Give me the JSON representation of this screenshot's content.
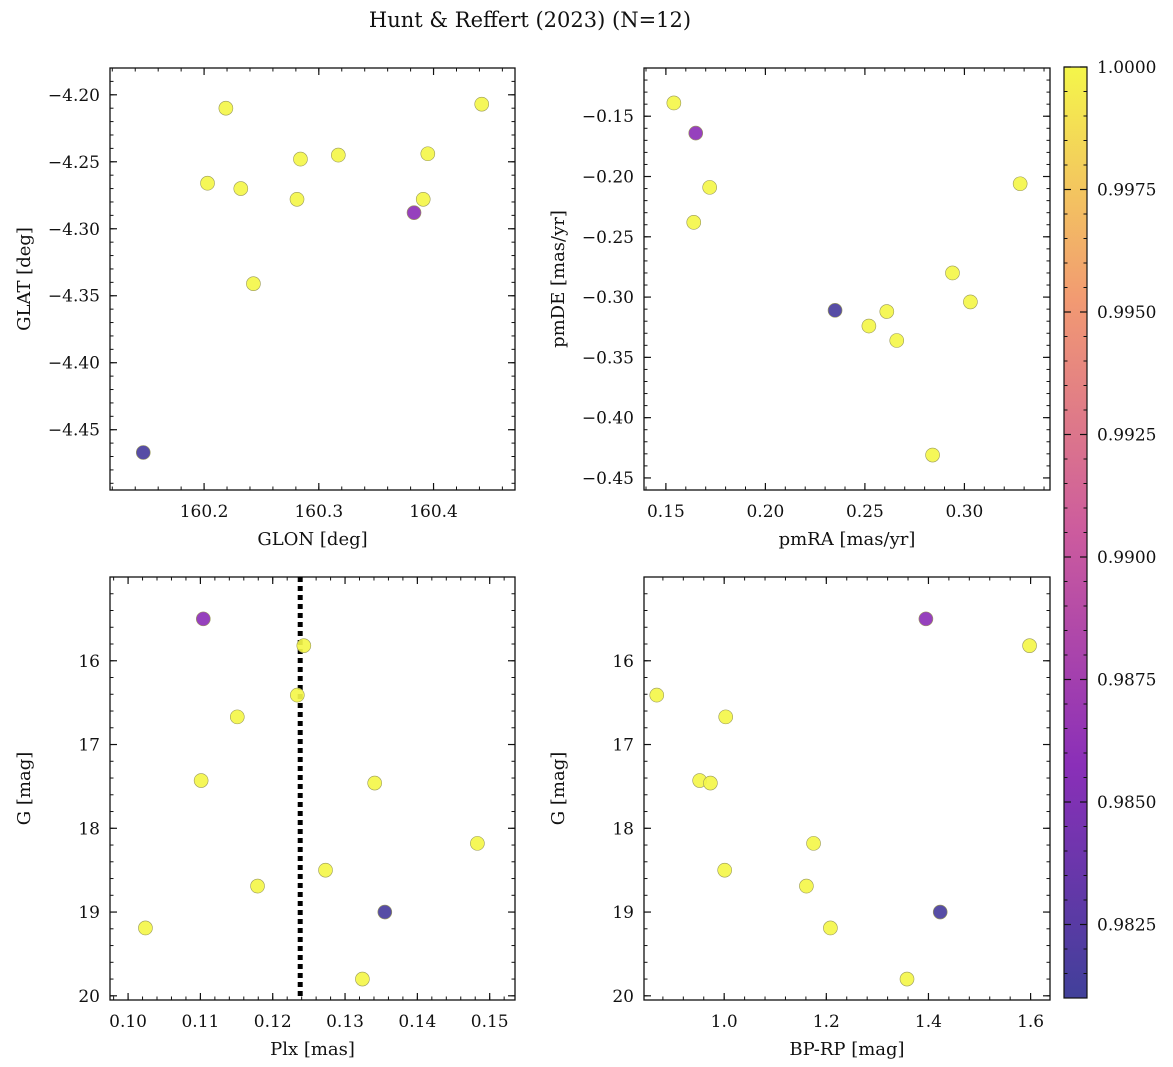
{
  "figure": {
    "title": "Hunt & Reffert (2023) (N=12)"
  },
  "colorbar": {
    "min": 0.981,
    "max": 1.0,
    "ticks": [
      0.9825,
      0.985,
      0.9875,
      0.99,
      0.9925,
      0.995,
      0.9975,
      1.0
    ],
    "tick_labels": [
      "0.9825",
      "0.9850",
      "0.9875",
      "0.9900",
      "0.9925",
      "0.9950",
      "0.9975",
      "1.0000"
    ],
    "colormap": "plasma"
  },
  "chart_data": [
    {
      "type": "scatter",
      "xlabel": "GLON [deg]",
      "ylabel": "GLAT [deg]",
      "xlim": [
        160.118,
        160.471
      ],
      "ylim": [
        -4.495,
        -4.18
      ],
      "y_inverted": false,
      "xticks": [
        160.2,
        160.3,
        160.4
      ],
      "xtick_labels": [
        "160.2",
        "160.3",
        "160.4"
      ],
      "yticks": [
        -4.2,
        -4.25,
        -4.3,
        -4.35,
        -4.4,
        -4.45
      ],
      "ytick_labels": [
        "−4.20",
        "−4.25",
        "−4.30",
        "−4.35",
        "−4.40",
        "−4.45"
      ],
      "points": [
        {
          "x": 160.219,
          "y": -4.21,
          "c": 1.0
        },
        {
          "x": 160.203,
          "y": -4.266,
          "c": 1.0
        },
        {
          "x": 160.232,
          "y": -4.27,
          "c": 1.0
        },
        {
          "x": 160.284,
          "y": -4.248,
          "c": 1.0
        },
        {
          "x": 160.281,
          "y": -4.278,
          "c": 1.0
        },
        {
          "x": 160.317,
          "y": -4.245,
          "c": 1.0
        },
        {
          "x": 160.395,
          "y": -4.244,
          "c": 1.0
        },
        {
          "x": 160.391,
          "y": -4.278,
          "c": 1.0
        },
        {
          "x": 160.442,
          "y": -4.207,
          "c": 1.0
        },
        {
          "x": 160.383,
          "y": -4.288,
          "c": 0.986
        },
        {
          "x": 160.243,
          "y": -4.341,
          "c": 1.0
        },
        {
          "x": 160.147,
          "y": -4.467,
          "c": 0.9815
        }
      ]
    },
    {
      "type": "scatter",
      "xlabel": "pmRA [mas/yr]",
      "ylabel": "pmDE [mas/yr]",
      "xlim": [
        0.139,
        0.343
      ],
      "ylim": [
        -0.46,
        -0.11
      ],
      "y_inverted": false,
      "xticks": [
        0.15,
        0.2,
        0.25,
        0.3
      ],
      "xtick_labels": [
        "0.15",
        "0.20",
        "0.25",
        "0.30"
      ],
      "yticks": [
        -0.15,
        -0.2,
        -0.25,
        -0.3,
        -0.35,
        -0.4,
        -0.45
      ],
      "ytick_labels": [
        "−0.15",
        "−0.20",
        "−0.25",
        "−0.30",
        "−0.35",
        "−0.40",
        "−0.45"
      ],
      "points": [
        {
          "x": 0.154,
          "y": -0.139,
          "c": 1.0
        },
        {
          "x": 0.165,
          "y": -0.164,
          "c": 0.986
        },
        {
          "x": 0.172,
          "y": -0.209,
          "c": 1.0
        },
        {
          "x": 0.164,
          "y": -0.238,
          "c": 1.0
        },
        {
          "x": 0.328,
          "y": -0.206,
          "c": 1.0
        },
        {
          "x": 0.294,
          "y": -0.28,
          "c": 1.0
        },
        {
          "x": 0.303,
          "y": -0.304,
          "c": 1.0
        },
        {
          "x": 0.235,
          "y": -0.311,
          "c": 0.9815
        },
        {
          "x": 0.261,
          "y": -0.312,
          "c": 1.0
        },
        {
          "x": 0.252,
          "y": -0.324,
          "c": 1.0
        },
        {
          "x": 0.266,
          "y": -0.336,
          "c": 1.0
        },
        {
          "x": 0.284,
          "y": -0.431,
          "c": 1.0
        }
      ]
    },
    {
      "type": "scatter",
      "xlabel": "Plx [mas]",
      "ylabel": "G [mag]",
      "xlim": [
        0.0975,
        0.1535
      ],
      "ylim": [
        20.05,
        15.0
      ],
      "y_inverted": true,
      "xticks": [
        0.1,
        0.11,
        0.12,
        0.13,
        0.14,
        0.15
      ],
      "xtick_labels": [
        "0.10",
        "0.11",
        "0.12",
        "0.13",
        "0.14",
        "0.15"
      ],
      "yticks": [
        16,
        17,
        18,
        19,
        20
      ],
      "ytick_labels": [
        "16",
        "17",
        "18",
        "19",
        "20"
      ],
      "vline": {
        "x": 0.1238,
        "style": "dotted"
      },
      "points": [
        {
          "x": 0.1104,
          "y": 15.5,
          "c": 0.986
        },
        {
          "x": 0.1243,
          "y": 15.82,
          "c": 1.0
        },
        {
          "x": 0.1234,
          "y": 16.41,
          "c": 1.0
        },
        {
          "x": 0.1151,
          "y": 16.67,
          "c": 1.0
        },
        {
          "x": 0.1101,
          "y": 17.43,
          "c": 1.0
        },
        {
          "x": 0.1341,
          "y": 17.46,
          "c": 1.0
        },
        {
          "x": 0.1483,
          "y": 18.18,
          "c": 1.0
        },
        {
          "x": 0.1273,
          "y": 18.5,
          "c": 1.0
        },
        {
          "x": 0.1179,
          "y": 18.69,
          "c": 1.0
        },
        {
          "x": 0.1355,
          "y": 19.0,
          "c": 0.9815
        },
        {
          "x": 0.1024,
          "y": 19.19,
          "c": 1.0
        },
        {
          "x": 0.1324,
          "y": 19.8,
          "c": 1.0
        }
      ]
    },
    {
      "type": "scatter",
      "xlabel": "BP-RP [mag]",
      "ylabel": "G [mag]",
      "xlim": [
        0.843,
        1.638
      ],
      "ylim": [
        20.05,
        15.0
      ],
      "y_inverted": true,
      "xticks": [
        1.0,
        1.2,
        1.4,
        1.6
      ],
      "xtick_labels": [
        "1.0",
        "1.2",
        "1.4",
        "1.6"
      ],
      "yticks": [
        16,
        17,
        18,
        19,
        20
      ],
      "ytick_labels": [
        "16",
        "17",
        "18",
        "19",
        "20"
      ],
      "points": [
        {
          "x": 1.395,
          "y": 15.5,
          "c": 0.986
        },
        {
          "x": 1.598,
          "y": 15.82,
          "c": 1.0
        },
        {
          "x": 0.868,
          "y": 16.41,
          "c": 1.0
        },
        {
          "x": 1.003,
          "y": 16.67,
          "c": 1.0
        },
        {
          "x": 0.952,
          "y": 17.43,
          "c": 1.0
        },
        {
          "x": 0.973,
          "y": 17.46,
          "c": 1.0
        },
        {
          "x": 1.175,
          "y": 18.18,
          "c": 1.0
        },
        {
          "x": 1.001,
          "y": 18.5,
          "c": 1.0
        },
        {
          "x": 1.161,
          "y": 18.69,
          "c": 1.0
        },
        {
          "x": 1.423,
          "y": 19.0,
          "c": 0.9815
        },
        {
          "x": 1.208,
          "y": 19.19,
          "c": 1.0
        },
        {
          "x": 1.358,
          "y": 19.8,
          "c": 1.0
        }
      ]
    }
  ]
}
